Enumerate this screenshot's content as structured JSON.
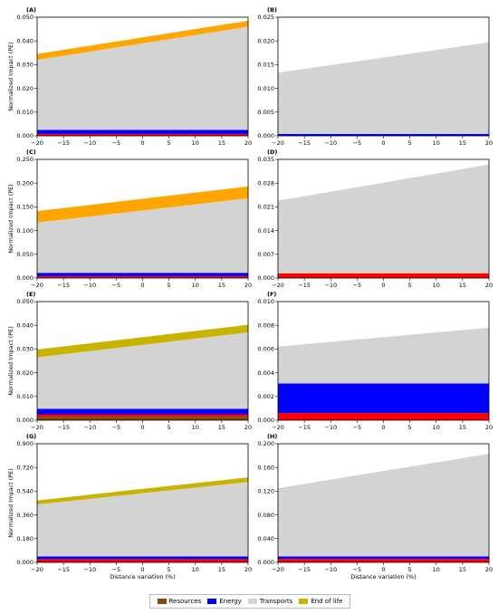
{
  "figure": {
    "x_label": "Distance variation (%)",
    "y_label": "Normalized Impact (PE)"
  },
  "legend": {
    "items": [
      {
        "name": "Resources",
        "color": "#7a4a0e"
      },
      {
        "name": "Energy",
        "color": "#0000ff"
      },
      {
        "name": "Transports",
        "color": "#d3d3d3"
      },
      {
        "name": "End of life",
        "color": "#c8b400"
      }
    ]
  },
  "chart_data": [
    {
      "panel": "(A)",
      "type": "area",
      "x": [
        -20,
        20
      ],
      "xticks": [
        -20,
        -15,
        -10,
        -5,
        0,
        5,
        10,
        15,
        20
      ],
      "ylim": [
        0,
        0.05
      ],
      "yticks": [
        "0.000",
        "0.010",
        "0.020",
        "0.030",
        "0.040",
        "0.050"
      ],
      "bands": [
        {
          "color": "#ff0000",
          "lower": [
            0,
            0
          ],
          "upper": [
            0.0008,
            0.0008
          ]
        },
        {
          "color": "#0000ff",
          "lower": [
            0.0008,
            0.0008
          ],
          "upper": [
            0.0025,
            0.0025
          ]
        },
        {
          "color": "#d3d3d3",
          "lower": [
            0.0025,
            0.0025
          ],
          "upper": [
            0.032,
            0.046
          ]
        },
        {
          "color": "#ffa500",
          "lower": [
            0.032,
            0.046
          ],
          "upper": [
            0.0345,
            0.0485
          ]
        }
      ]
    },
    {
      "panel": "(B)",
      "type": "area",
      "x": [
        -20,
        20
      ],
      "xticks": [
        -20,
        -15,
        -10,
        -5,
        0,
        5,
        10,
        15,
        20
      ],
      "ylim": [
        0,
        0.025
      ],
      "yticks": [
        "0.000",
        "0.005",
        "0.010",
        "0.015",
        "0.020",
        "0.025"
      ],
      "bands": [
        {
          "color": "#0000ff",
          "lower": [
            0,
            0
          ],
          "upper": [
            0.0004,
            0.0004
          ]
        },
        {
          "color": "#d3d3d3",
          "lower": [
            0.0004,
            0.0004
          ],
          "upper": [
            0.0133,
            0.0197
          ]
        }
      ]
    },
    {
      "panel": "(C)",
      "type": "area",
      "x": [
        -20,
        20
      ],
      "xticks": [
        -20,
        -15,
        -10,
        -5,
        0,
        5,
        10,
        15,
        20
      ],
      "ylim": [
        0,
        0.25
      ],
      "yticks": [
        "0.000",
        "0.050",
        "0.100",
        "0.150",
        "0.200",
        "0.250"
      ],
      "bands": [
        {
          "color": "#ff0000",
          "lower": [
            0,
            0
          ],
          "upper": [
            0.004,
            0.004
          ]
        },
        {
          "color": "#0000ff",
          "lower": [
            0.004,
            0.004
          ],
          "upper": [
            0.011,
            0.011
          ]
        },
        {
          "color": "#d3d3d3",
          "lower": [
            0.011,
            0.011
          ],
          "upper": [
            0.117,
            0.168
          ]
        },
        {
          "color": "#ffa500",
          "lower": [
            0.117,
            0.168
          ],
          "upper": [
            0.141,
            0.193
          ]
        }
      ]
    },
    {
      "panel": "(D)",
      "type": "area",
      "x": [
        -20,
        20
      ],
      "xticks": [
        -20,
        -15,
        -10,
        -5,
        0,
        5,
        10,
        15,
        20
      ],
      "ylim": [
        0,
        0.035
      ],
      "yticks": [
        "0.000",
        "0.007",
        "0.014",
        "0.021",
        "0.028",
        "0.035"
      ],
      "bands": [
        {
          "color": "#ff0000",
          "lower": [
            0,
            0
          ],
          "upper": [
            0.0014,
            0.0014
          ]
        },
        {
          "color": "#d3d3d3",
          "lower": [
            0.0014,
            0.0014
          ],
          "upper": [
            0.0228,
            0.0335
          ]
        }
      ]
    },
    {
      "panel": "(E)",
      "type": "area",
      "x": [
        -20,
        20
      ],
      "xticks": [
        -20,
        -15,
        -10,
        -5,
        0,
        5,
        10,
        15,
        20
      ],
      "ylim": [
        0,
        0.05
      ],
      "yticks": [
        "0.000",
        "0.010",
        "0.020",
        "0.030",
        "0.040",
        "0.050"
      ],
      "bands": [
        {
          "color": "#7a4a0e",
          "lower": [
            0,
            0
          ],
          "upper": [
            0.0015,
            0.0015
          ]
        },
        {
          "color": "#ff0000",
          "lower": [
            0.0015,
            0.0015
          ],
          "upper": [
            0.0025,
            0.0025
          ]
        },
        {
          "color": "#0000ff",
          "lower": [
            0.0025,
            0.0025
          ],
          "upper": [
            0.0048,
            0.0048
          ]
        },
        {
          "color": "#d3d3d3",
          "lower": [
            0.0048,
            0.0048
          ],
          "upper": [
            0.0265,
            0.037
          ]
        },
        {
          "color": "#c8b400",
          "lower": [
            0.0265,
            0.037
          ],
          "upper": [
            0.0298,
            0.0402
          ]
        }
      ]
    },
    {
      "panel": "(F)",
      "type": "area",
      "x": [
        -20,
        20
      ],
      "xticks": [
        -20,
        -15,
        -10,
        -5,
        0,
        5,
        10,
        15,
        20
      ],
      "ylim": [
        0,
        0.01
      ],
      "yticks": [
        "0.000",
        "0.002",
        "0.004",
        "0.006",
        "0.008",
        "0.010"
      ],
      "bands": [
        {
          "color": "#ff0000",
          "lower": [
            0,
            0
          ],
          "upper": [
            0.0006,
            0.0006
          ]
        },
        {
          "color": "#0000ff",
          "lower": [
            0.0006,
            0.0006
          ],
          "upper": [
            0.0031,
            0.0031
          ]
        },
        {
          "color": "#d3d3d3",
          "lower": [
            0.0031,
            0.0031
          ],
          "upper": [
            0.0062,
            0.0078
          ]
        }
      ]
    },
    {
      "panel": "(G)",
      "type": "area",
      "x": [
        -20,
        20
      ],
      "xticks": [
        -20,
        -15,
        -10,
        -5,
        0,
        5,
        10,
        15,
        20
      ],
      "ylim": [
        0,
        0.9
      ],
      "yticks": [
        "0.000",
        "0.180",
        "0.360",
        "0.540",
        "0.720",
        "0.900"
      ],
      "bands": [
        {
          "color": "#ff0000",
          "lower": [
            0,
            0
          ],
          "upper": [
            0.025,
            0.025
          ]
        },
        {
          "color": "#0000ff",
          "lower": [
            0.025,
            0.025
          ],
          "upper": [
            0.045,
            0.045
          ]
        },
        {
          "color": "#d3d3d3",
          "lower": [
            0.045,
            0.045
          ],
          "upper": [
            0.44,
            0.61
          ]
        },
        {
          "color": "#c8b400",
          "lower": [
            0.44,
            0.61
          ],
          "upper": [
            0.47,
            0.645
          ]
        }
      ]
    },
    {
      "panel": "(H)",
      "type": "area",
      "x": [
        -20,
        20
      ],
      "xticks": [
        -20,
        -15,
        -10,
        -5,
        0,
        5,
        10,
        15,
        20
      ],
      "ylim": [
        0,
        0.2
      ],
      "yticks": [
        "0.000",
        "0.040",
        "0.080",
        "0.120",
        "0.160",
        "0.200"
      ],
      "bands": [
        {
          "color": "#ff0000",
          "lower": [
            0,
            0
          ],
          "upper": [
            0.006,
            0.006
          ]
        },
        {
          "color": "#0000ff",
          "lower": [
            0.006,
            0.006
          ],
          "upper": [
            0.01,
            0.01
          ]
        },
        {
          "color": "#d3d3d3",
          "lower": [
            0.01,
            0.01
          ],
          "upper": [
            0.125,
            0.183
          ]
        }
      ]
    }
  ]
}
